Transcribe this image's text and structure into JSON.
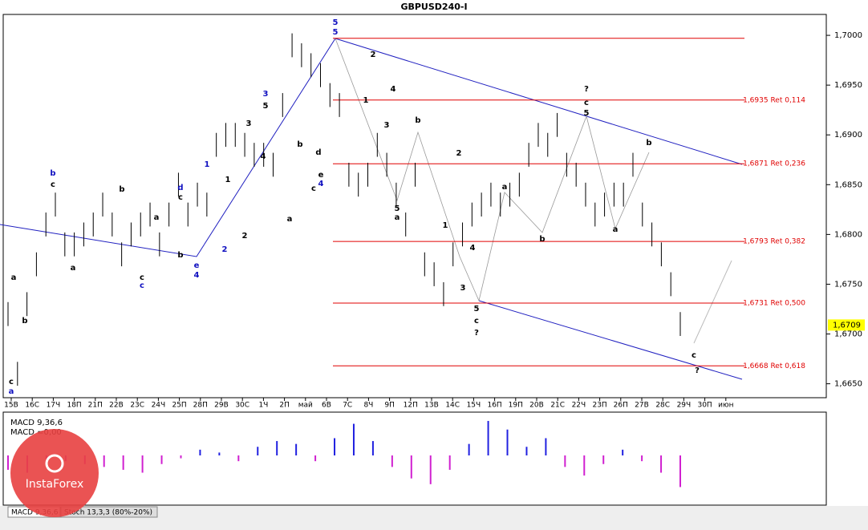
{
  "chart_data": {
    "type": "ohlc",
    "title": "GBPUSD240-I",
    "categories": [
      "15В",
      "16С",
      "17Ч",
      "18П",
      "21П",
      "22В",
      "23С",
      "24Ч",
      "25П",
      "28П",
      "29В",
      "30С",
      "1Ч",
      "2П",
      "май",
      "6В",
      "7С",
      "8Ч",
      "9П",
      "12П",
      "13В",
      "14С",
      "15Ч",
      "16П",
      "19П",
      "20В",
      "21С",
      "22Ч",
      "23П",
      "26П",
      "27В",
      "28С",
      "29Ч",
      "30П",
      "июн"
    ],
    "high": [
      1.6732,
      1.6672,
      1.6742,
      1.6782,
      1.6822,
      1.6842,
      1.6802,
      1.6802,
      1.6812,
      1.6822,
      1.6842,
      1.6822,
      1.6792,
      1.6812,
      1.6822,
      1.6832,
      1.6802,
      1.6832,
      1.6862,
      1.6832,
      1.6852,
      1.6842,
      1.6902,
      1.6912,
      1.6912,
      1.6902,
      1.6892,
      1.6892,
      1.6882,
      1.6942,
      1.7002,
      1.6992,
      1.6982,
      1.6972,
      1.6952,
      1.6942,
      1.6872,
      1.6862,
      1.6872,
      1.6902,
      1.6882,
      1.6852,
      1.6822,
      1.6872,
      1.6782,
      1.6772,
      1.6752,
      1.6792,
      1.6812,
      1.6832,
      1.6842,
      1.6852,
      1.6842,
      1.6852,
      1.6862,
      1.6892,
      1.6912,
      1.6902,
      1.6922,
      1.6882,
      1.6872,
      1.6852,
      1.6832,
      1.6842,
      1.6852,
      1.6852,
      1.6882,
      1.6832,
      1.6812,
      1.6792,
      1.6762,
      1.6722
    ],
    "low": [
      1.6708,
      1.6648,
      1.6718,
      1.6758,
      1.6798,
      1.6818,
      1.6778,
      1.6778,
      1.6788,
      1.6798,
      1.6818,
      1.6798,
      1.6768,
      1.6788,
      1.6798,
      1.6808,
      1.6778,
      1.6808,
      1.6838,
      1.6808,
      1.6828,
      1.6818,
      1.6878,
      1.6888,
      1.6888,
      1.6878,
      1.6868,
      1.6868,
      1.6858,
      1.6918,
      1.6978,
      1.6968,
      1.6958,
      1.6948,
      1.6928,
      1.6918,
      1.6848,
      1.6838,
      1.6848,
      1.6878,
      1.6858,
      1.6828,
      1.6798,
      1.6848,
      1.6758,
      1.6748,
      1.6728,
      1.6768,
      1.6788,
      1.6808,
      1.6818,
      1.6828,
      1.6818,
      1.6828,
      1.6838,
      1.6868,
      1.6888,
      1.6878,
      1.6898,
      1.6858,
      1.6848,
      1.6828,
      1.6808,
      1.6818,
      1.6828,
      1.6828,
      1.6858,
      1.6808,
      1.6788,
      1.6768,
      1.6738,
      1.6698
    ],
    "color": "#000000",
    "ylim": [
      1.6636,
      1.7021
    ],
    "yticks": [
      {
        "value": 1.665,
        "label": "1,6650"
      },
      {
        "value": 1.67,
        "label": "1,6700"
      },
      {
        "value": 1.675,
        "label": "1,6750"
      },
      {
        "value": 1.68,
        "label": "1,6800"
      },
      {
        "value": 1.685,
        "label": "1,6850"
      },
      {
        "value": 1.69,
        "label": "1,6900"
      },
      {
        "value": 1.695,
        "label": "1,6950"
      },
      {
        "value": 1.7,
        "label": "1,7000"
      }
    ],
    "last_price": {
      "value": 1.6709,
      "label": "1,6709"
    },
    "level_color": "#e00000",
    "levels": [
      {
        "value": 1.6997
      },
      {
        "value": 1.6935,
        "label": "1,6935 Ret 0,114"
      },
      {
        "value": 1.6871,
        "label": "1,6871 Ret 0,236"
      },
      {
        "value": 1.6793,
        "label": "1,6793 Ret 0,382"
      },
      {
        "value": 1.6731,
        "label": "1,6731 Ret 0,500"
      },
      {
        "value": 1.6668,
        "label": "1,6668 Ret 0,618"
      }
    ],
    "wave_labels": [
      {
        "text": "5",
        "color": "#1010c0"
      },
      {
        "text": "5",
        "color": "#1010c0"
      },
      {
        "text": "2",
        "color": "#000"
      },
      {
        "text": "1",
        "color": "#000"
      },
      {
        "text": "4",
        "color": "#000"
      },
      {
        "text": "3",
        "color": "#000"
      },
      {
        "text": "5",
        "color": "#000"
      },
      {
        "text": "a",
        "color": "#000"
      },
      {
        "text": "b",
        "color": "#000"
      },
      {
        "text": "2",
        "color": "#000"
      },
      {
        "text": "1",
        "color": "#000"
      },
      {
        "text": "4",
        "color": "#000"
      },
      {
        "text": "3",
        "color": "#000"
      },
      {
        "text": "5",
        "color": "#000"
      },
      {
        "text": "c",
        "color": "#000"
      },
      {
        "text": "?",
        "color": "#000"
      },
      {
        "text": "a",
        "color": "#000"
      },
      {
        "text": "b",
        "color": "#000"
      },
      {
        "text": "?",
        "color": "#000"
      },
      {
        "text": "c",
        "color": "#000"
      },
      {
        "text": "5",
        "color": "#000"
      },
      {
        "text": "a",
        "color": "#000"
      },
      {
        "text": "b",
        "color": "#000"
      },
      {
        "text": "c",
        "color": "#000"
      },
      {
        "text": "?",
        "color": "#000"
      },
      {
        "text": "c",
        "color": "#000"
      },
      {
        "text": "a",
        "color": "#1010c0"
      },
      {
        "text": "b",
        "color": "#000"
      },
      {
        "text": "a",
        "color": "#000"
      },
      {
        "text": "b",
        "color": "#1010c0"
      },
      {
        "text": "c",
        "color": "#000"
      },
      {
        "text": "a",
        "color": "#000"
      },
      {
        "text": "b",
        "color": "#000"
      },
      {
        "text": "a",
        "color": "#000"
      },
      {
        "text": "c",
        "color": "#000"
      },
      {
        "text": "c",
        "color": "#1010c0"
      },
      {
        "text": "d",
        "color": "#1010c0"
      },
      {
        "text": "c",
        "color": "#000"
      },
      {
        "text": "b",
        "color": "#000"
      },
      {
        "text": "e",
        "color": "#1010c0"
      },
      {
        "text": "4",
        "color": "#1010c0"
      },
      {
        "text": "1",
        "color": "#1010c0"
      },
      {
        "text": "2",
        "color": "#1010c0"
      },
      {
        "text": "1",
        "color": "#000"
      },
      {
        "text": "2",
        "color": "#000"
      },
      {
        "text": "3",
        "color": "#000"
      },
      {
        "text": "4",
        "color": "#000"
      },
      {
        "text": "3",
        "color": "#1010c0"
      },
      {
        "text": "5",
        "color": "#000"
      },
      {
        "text": "a",
        "color": "#000"
      },
      {
        "text": "b",
        "color": "#000"
      },
      {
        "text": "d",
        "color": "#000"
      },
      {
        "text": "e",
        "color": "#000"
      },
      {
        "text": "4",
        "color": "#1010c0"
      },
      {
        "text": "c",
        "color": "#000"
      }
    ],
    "macd": {
      "label": "MACD 9,36,6",
      "value_label": "MACD =0,00",
      "ylim": [
        -0.0029,
        0.0029
      ],
      "positive_color": "#2020e0",
      "negative_color": "#d020d0",
      "values": [
        -0.001,
        -0.0012,
        -0.0008,
        -0.0004,
        -0.0006,
        -0.0008,
        -0.001,
        -0.0012,
        -0.0006,
        -0.0002,
        0.0004,
        0.0002,
        -0.0004,
        0.0006,
        0.001,
        0.0008,
        -0.0004,
        0.0012,
        0.0022,
        0.001,
        -0.0008,
        -0.0016,
        -0.002,
        -0.001,
        0.0008,
        0.0024,
        0.0018,
        0.0006,
        0.0012,
        -0.0008,
        -0.0014,
        -0.0006,
        0.0004,
        -0.0004,
        -0.0012,
        -0.0022
      ]
    },
    "tabs": [
      "MACD 9,36,6",
      "Stoch 13,3,3 (80%-20%)"
    ],
    "logo": "InstaForex"
  }
}
